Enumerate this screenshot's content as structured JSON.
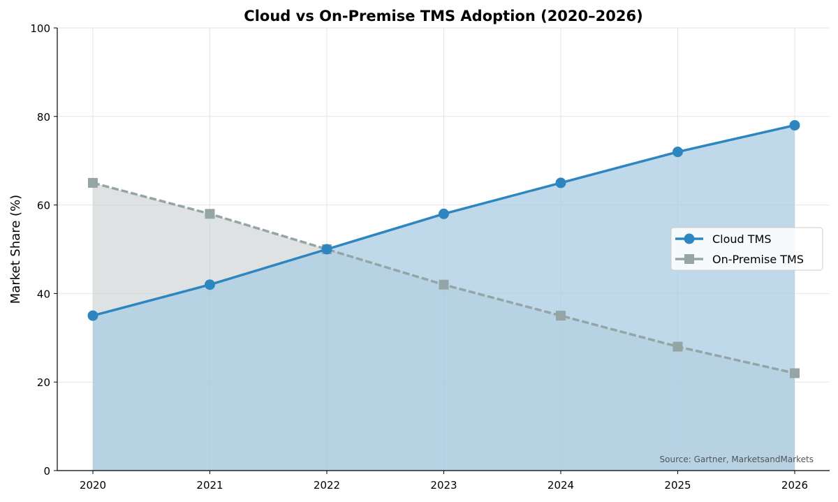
{
  "chart_data": {
    "type": "line",
    "title": "Cloud vs On-Premise TMS Adoption (2020–2026)",
    "xlabel": "",
    "ylabel": "Market Share (%)",
    "categories": [
      "2020",
      "2021",
      "2022",
      "2023",
      "2024",
      "2025",
      "2026"
    ],
    "ylim": [
      0,
      100
    ],
    "yticks": [
      "0",
      "20",
      "40",
      "60",
      "80",
      "100"
    ],
    "grid": true,
    "legend_position": "center-right",
    "series": [
      {
        "name": "Cloud TMS",
        "values": [
          35,
          42,
          50,
          58,
          65,
          72,
          78
        ],
        "color": "#2e86c1",
        "fill": "#a9cce3",
        "marker": "circle",
        "linestyle": "solid"
      },
      {
        "name": "On-Premise TMS",
        "values": [
          65,
          58,
          50,
          42,
          35,
          28,
          22
        ],
        "color": "#95a5a6",
        "fill": "#c8cfd0",
        "marker": "square",
        "linestyle": "dashed"
      }
    ],
    "annotation": "Source: Gartner, MarketsandMarkets"
  }
}
